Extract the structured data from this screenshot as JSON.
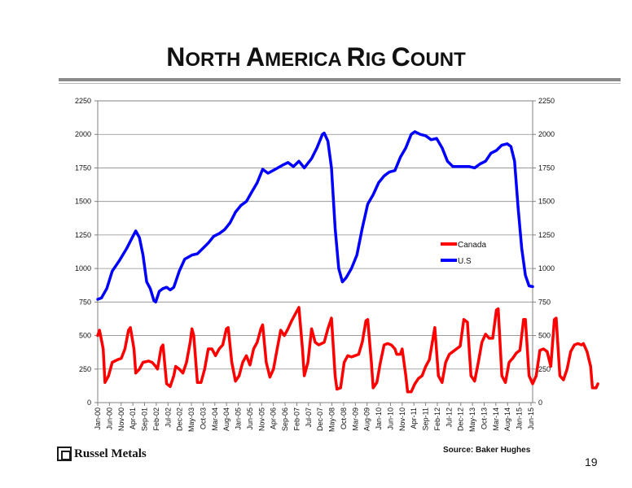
{
  "title": {
    "first_big": "N",
    "first_small": "ORTH ",
    "second_big": "A",
    "second_small": "MERICA ",
    "third_big": "R",
    "third_small": "IG ",
    "fourth_big": "C",
    "fourth_small": "OUNT"
  },
  "footer": {
    "logo": "Russel Metals",
    "source": "Source: Baker Hughes",
    "page_number": "19"
  },
  "chart_data": {
    "type": "line",
    "x_labels": [
      "Jan-00",
      "Jun-00",
      "Nov-00",
      "Apr-01",
      "Sep-01",
      "Feb-02",
      "Jul-02",
      "Dec-02",
      "May-03",
      "Oct-03",
      "Mar-04",
      "Aug-04",
      "Jan-05",
      "Jun-05",
      "Nov-05",
      "Apr-06",
      "Sep-06",
      "Feb-07",
      "Jul-07",
      "Dec-07",
      "May-08",
      "Oct-08",
      "Mar-09",
      "Aug-09",
      "Jan-10",
      "Jun-10",
      "Nov-10",
      "Apr-11",
      "Sep-11",
      "Feb-12",
      "Jul-12",
      "Dec-12",
      "May-13",
      "Oct-13",
      "Mar-14",
      "Aug-14",
      "Jan-15",
      "Jun-15"
    ],
    "ylim": [
      0,
      2250
    ],
    "y_ticks": [
      "0",
      "250",
      "500",
      "750",
      "1000",
      "1250",
      "1500",
      "1750",
      "2000",
      "2250"
    ],
    "y2_ticks": [
      "0",
      "250",
      "500",
      "750",
      "1000",
      "1250",
      "1500",
      "1750",
      "2000",
      "2250"
    ],
    "grid": "horizontal",
    "legend_position": "right",
    "colors": {
      "Canada": "#ff0000",
      "U.S": "#0000ff"
    },
    "series": [
      {
        "name": "U.S",
        "keypoints": [
          [
            0,
            770
          ],
          [
            2,
            780
          ],
          [
            5,
            850
          ],
          [
            8,
            980
          ],
          [
            12,
            1060
          ],
          [
            16,
            1150
          ],
          [
            19,
            1230
          ],
          [
            21,
            1280
          ],
          [
            23,
            1230
          ],
          [
            25,
            1100
          ],
          [
            27,
            900
          ],
          [
            29,
            850
          ],
          [
            31,
            760
          ],
          [
            32,
            750
          ],
          [
            34,
            830
          ],
          [
            36,
            850
          ],
          [
            38,
            860
          ],
          [
            40,
            840
          ],
          [
            42,
            860
          ],
          [
            45,
            980
          ],
          [
            48,
            1070
          ],
          [
            52,
            1100
          ],
          [
            55,
            1110
          ],
          [
            58,
            1150
          ],
          [
            61,
            1190
          ],
          [
            64,
            1240
          ],
          [
            67,
            1260
          ],
          [
            70,
            1290
          ],
          [
            73,
            1340
          ],
          [
            76,
            1420
          ],
          [
            79,
            1470
          ],
          [
            82,
            1500
          ],
          [
            85,
            1570
          ],
          [
            88,
            1640
          ],
          [
            91,
            1740
          ],
          [
            94,
            1710
          ],
          [
            98,
            1740
          ],
          [
            102,
            1770
          ],
          [
            105,
            1790
          ],
          [
            108,
            1760
          ],
          [
            111,
            1800
          ],
          [
            114,
            1750
          ],
          [
            118,
            1820
          ],
          [
            121,
            1900
          ],
          [
            124,
            2000
          ],
          [
            125,
            2010
          ],
          [
            127,
            1950
          ],
          [
            129,
            1750
          ],
          [
            131,
            1300
          ],
          [
            133,
            1000
          ],
          [
            135,
            900
          ],
          [
            137,
            930
          ],
          [
            140,
            1000
          ],
          [
            143,
            1100
          ],
          [
            146,
            1300
          ],
          [
            149,
            1480
          ],
          [
            152,
            1550
          ],
          [
            155,
            1640
          ],
          [
            158,
            1690
          ],
          [
            161,
            1720
          ],
          [
            164,
            1730
          ],
          [
            167,
            1830
          ],
          [
            170,
            1900
          ],
          [
            173,
            2000
          ],
          [
            175,
            2020
          ],
          [
            178,
            2000
          ],
          [
            181,
            1990
          ],
          [
            184,
            1960
          ],
          [
            187,
            1970
          ],
          [
            190,
            1900
          ],
          [
            193,
            1800
          ],
          [
            196,
            1760
          ],
          [
            199,
            1760
          ],
          [
            202,
            1760
          ],
          [
            205,
            1760
          ],
          [
            208,
            1750
          ],
          [
            211,
            1780
          ],
          [
            214,
            1800
          ],
          [
            217,
            1860
          ],
          [
            220,
            1880
          ],
          [
            223,
            1920
          ],
          [
            226,
            1930
          ],
          [
            228,
            1910
          ],
          [
            230,
            1800
          ],
          [
            232,
            1450
          ],
          [
            234,
            1150
          ],
          [
            236,
            950
          ],
          [
            238,
            870
          ],
          [
            240,
            865
          ]
        ]
      },
      {
        "name": "Canada",
        "keypoints": [
          [
            0,
            500
          ],
          [
            1,
            540
          ],
          [
            3,
            400
          ],
          [
            4,
            150
          ],
          [
            6,
            200
          ],
          [
            8,
            300
          ],
          [
            11,
            320
          ],
          [
            13,
            330
          ],
          [
            15,
            400
          ],
          [
            17,
            540
          ],
          [
            18,
            560
          ],
          [
            20,
            400
          ],
          [
            21,
            220
          ],
          [
            23,
            250
          ],
          [
            25,
            300
          ],
          [
            28,
            310
          ],
          [
            30,
            300
          ],
          [
            32,
            270
          ],
          [
            33,
            250
          ],
          [
            35,
            410
          ],
          [
            36,
            430
          ],
          [
            38,
            140
          ],
          [
            40,
            120
          ],
          [
            42,
            200
          ],
          [
            43,
            270
          ],
          [
            45,
            250
          ],
          [
            47,
            220
          ],
          [
            49,
            300
          ],
          [
            51,
            450
          ],
          [
            52,
            550
          ],
          [
            53,
            500
          ],
          [
            55,
            150
          ],
          [
            57,
            150
          ],
          [
            59,
            250
          ],
          [
            61,
            400
          ],
          [
            63,
            400
          ],
          [
            65,
            350
          ],
          [
            67,
            400
          ],
          [
            69,
            430
          ],
          [
            71,
            550
          ],
          [
            72,
            560
          ],
          [
            74,
            300
          ],
          [
            76,
            160
          ],
          [
            78,
            200
          ],
          [
            80,
            300
          ],
          [
            82,
            350
          ],
          [
            84,
            280
          ],
          [
            86,
            400
          ],
          [
            88,
            450
          ],
          [
            90,
            550
          ],
          [
            91,
            580
          ],
          [
            93,
            300
          ],
          [
            95,
            190
          ],
          [
            97,
            250
          ],
          [
            99,
            400
          ],
          [
            101,
            540
          ],
          [
            103,
            500
          ],
          [
            105,
            550
          ],
          [
            107,
            610
          ],
          [
            109,
            660
          ],
          [
            111,
            710
          ],
          [
            113,
            400
          ],
          [
            114,
            200
          ],
          [
            116,
            300
          ],
          [
            118,
            550
          ],
          [
            120,
            450
          ],
          [
            122,
            430
          ],
          [
            125,
            450
          ],
          [
            127,
            550
          ],
          [
            129,
            630
          ],
          [
            131,
            200
          ],
          [
            132,
            100
          ],
          [
            134,
            110
          ],
          [
            136,
            300
          ],
          [
            138,
            350
          ],
          [
            140,
            340
          ],
          [
            142,
            350
          ],
          [
            144,
            360
          ],
          [
            146,
            450
          ],
          [
            148,
            610
          ],
          [
            149,
            620
          ],
          [
            151,
            300
          ],
          [
            152,
            110
          ],
          [
            154,
            150
          ],
          [
            156,
            300
          ],
          [
            158,
            430
          ],
          [
            160,
            440
          ],
          [
            162,
            430
          ],
          [
            164,
            400
          ],
          [
            165,
            360
          ],
          [
            167,
            360
          ],
          [
            168,
            400
          ],
          [
            170,
            200
          ],
          [
            171,
            80
          ],
          [
            173,
            80
          ],
          [
            175,
            140
          ],
          [
            177,
            180
          ],
          [
            179,
            200
          ],
          [
            181,
            270
          ],
          [
            183,
            320
          ],
          [
            186,
            560
          ],
          [
            188,
            200
          ],
          [
            190,
            150
          ],
          [
            192,
            300
          ],
          [
            194,
            360
          ],
          [
            196,
            380
          ],
          [
            198,
            400
          ],
          [
            200,
            420
          ],
          [
            202,
            620
          ],
          [
            204,
            600
          ],
          [
            206,
            200
          ],
          [
            208,
            160
          ],
          [
            210,
            300
          ],
          [
            212,
            450
          ],
          [
            214,
            510
          ],
          [
            216,
            480
          ],
          [
            218,
            480
          ],
          [
            220,
            690
          ],
          [
            221,
            700
          ],
          [
            223,
            200
          ],
          [
            225,
            150
          ],
          [
            227,
            300
          ],
          [
            229,
            330
          ],
          [
            231,
            370
          ],
          [
            233,
            390
          ],
          [
            235,
            620
          ],
          [
            236,
            620
          ],
          [
            238,
            200
          ],
          [
            240,
            140
          ],
          [
            242,
            200
          ],
          [
            244,
            390
          ],
          [
            246,
            400
          ],
          [
            248,
            380
          ],
          [
            250,
            270
          ],
          [
            252,
            620
          ],
          [
            253,
            630
          ],
          [
            255,
            200
          ],
          [
            257,
            170
          ],
          [
            259,
            250
          ],
          [
            261,
            380
          ],
          [
            263,
            430
          ],
          [
            265,
            440
          ],
          [
            267,
            430
          ],
          [
            268,
            440
          ],
          [
            270,
            380
          ],
          [
            272,
            270
          ],
          [
            273,
            110
          ],
          [
            275,
            110
          ],
          [
            276,
            140
          ]
        ]
      }
    ]
  }
}
